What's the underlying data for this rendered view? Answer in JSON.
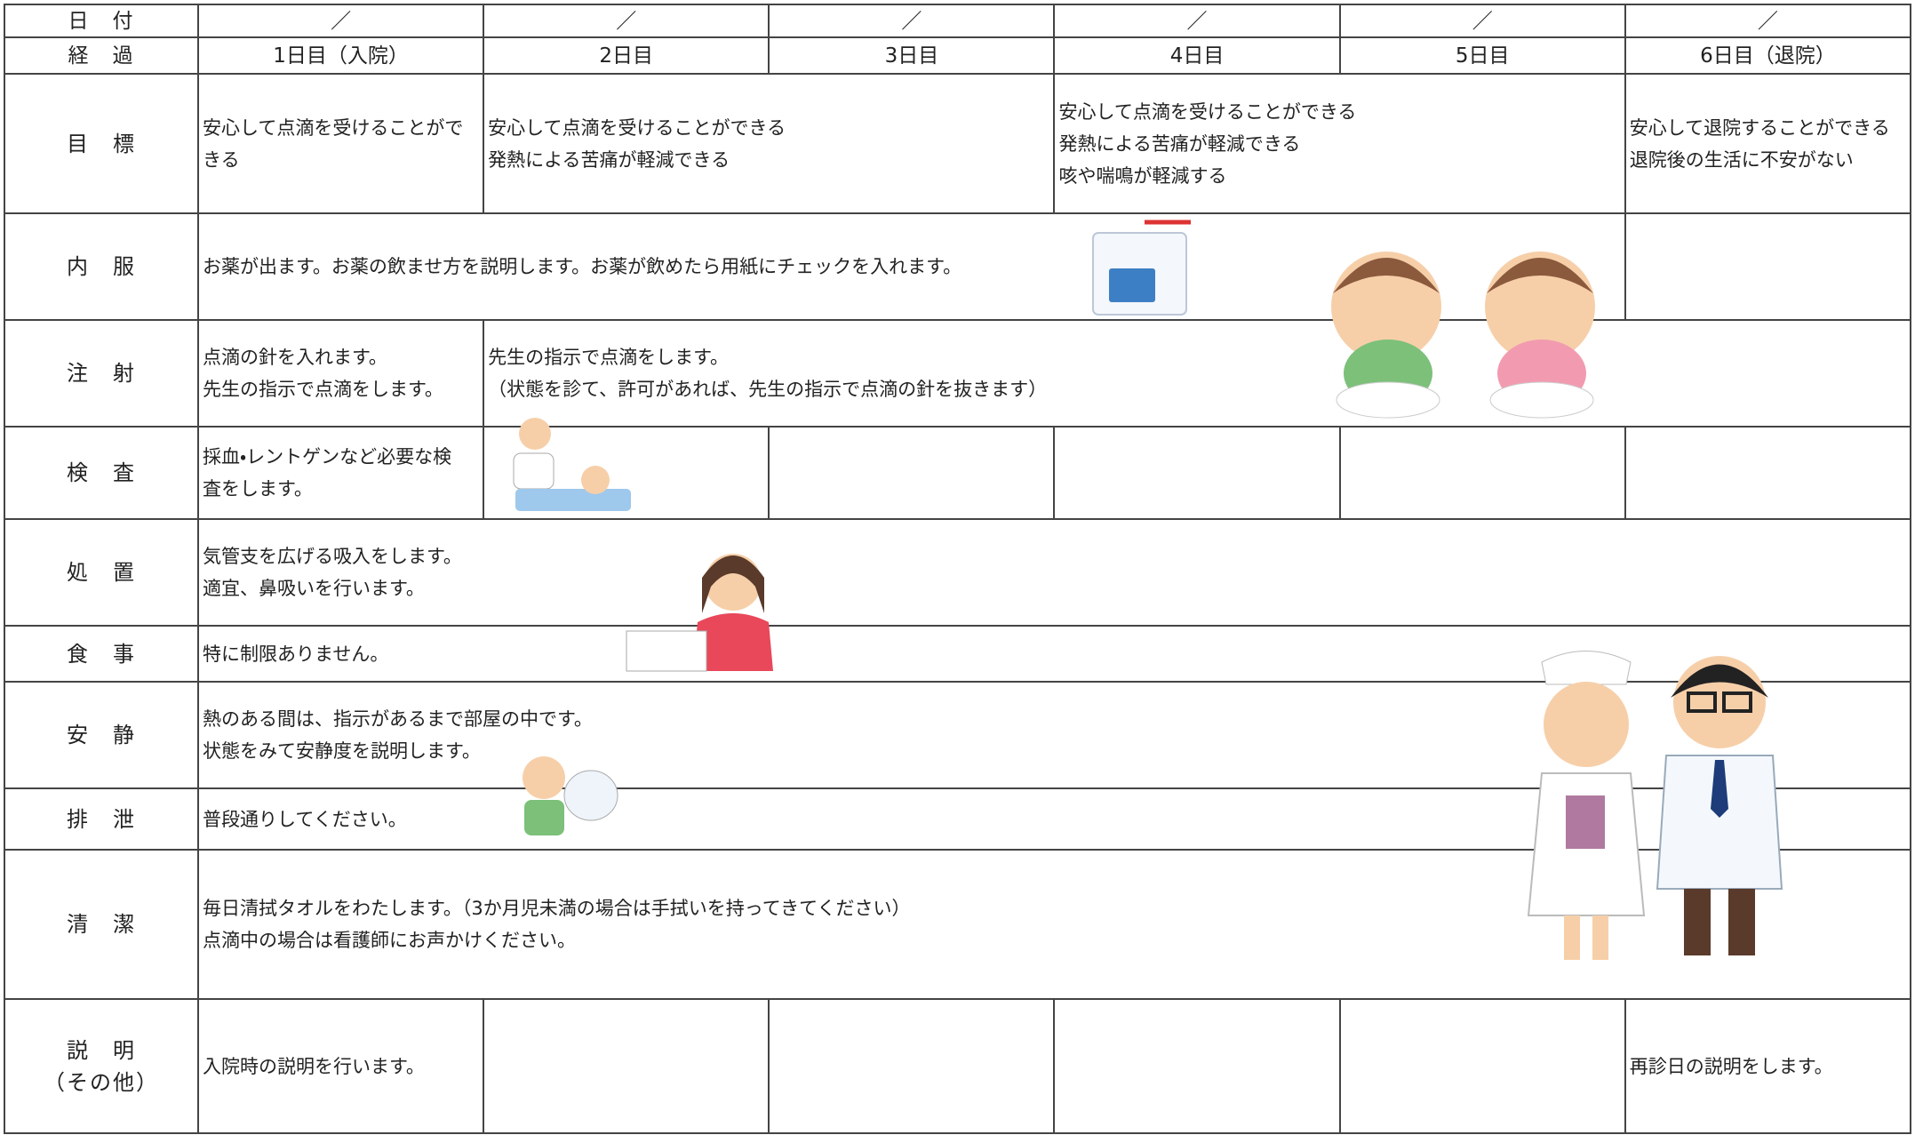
{
  "rows": [
    {
      "label": [
        "日　付"
      ],
      "cells": [
        {
          "span": 1,
          "lines": [
            "／"
          ]
        },
        {
          "span": 1,
          "lines": [
            "／"
          ]
        },
        {
          "span": 1,
          "lines": [
            "／"
          ]
        },
        {
          "span": 1,
          "lines": [
            "／"
          ]
        },
        {
          "span": 1,
          "lines": [
            "／"
          ]
        },
        {
          "span": 1,
          "lines": [
            "／"
          ]
        }
      ]
    },
    {
      "label": [
        "経　過"
      ],
      "cells": [
        {
          "span": 1,
          "lines": [
            "1日目（入院）"
          ]
        },
        {
          "span": 1,
          "lines": [
            "2日目"
          ]
        },
        {
          "span": 1,
          "lines": [
            "3日目"
          ]
        },
        {
          "span": 1,
          "lines": [
            "4日目"
          ]
        },
        {
          "span": 1,
          "lines": [
            "5日目"
          ]
        },
        {
          "span": 1,
          "lines": [
            "6日目（退院）"
          ]
        }
      ]
    },
    {
      "label": [
        "目　標"
      ],
      "cells": [
        {
          "span": 1,
          "lines": [
            "安心して点滴を受けることがで",
            "きる"
          ]
        },
        {
          "span": 2,
          "lines": [
            "安心して点滴を受けることができる",
            "発熱による苦痛が軽減できる"
          ]
        },
        {
          "span": 2,
          "lines": [
            "安心して点滴を受けることができる",
            "発熱による苦痛が軽減できる",
            "咳や喘鳴が軽減する"
          ]
        },
        {
          "span": 1,
          "lines": [
            "安心して退院することができる",
            "退院後の生活に不安がない"
          ]
        }
      ]
    },
    {
      "label": [
        "内　服"
      ],
      "cells": [
        {
          "span": 5,
          "lines": [
            "お薬が出ます。お薬の飲ませ方を説明します。お薬が飲めたら用紙にチェックを入れます。"
          ]
        },
        {
          "span": 1
        }
      ]
    },
    {
      "label": [
        "注　射"
      ],
      "cells": [
        {
          "span": 1,
          "lines": [
            "点滴の針を入れます。",
            "先生の指示で点滴をします。"
          ]
        },
        {
          "span": 5,
          "lines": [
            "先生の指示で点滴をします。",
            "（状態を診て、許可があれば、先生の指示で点滴の針を抜きます）"
          ]
        }
      ]
    },
    {
      "label": [
        "検　査"
      ],
      "cells": [
        {
          "span": 1,
          "lines": [
            "採血・レントゲンなど必要な検",
            "査をします。"
          ]
        },
        {
          "span": 1
        },
        {
          "span": 1
        },
        {
          "span": 1
        },
        {
          "span": 1
        },
        {
          "span": 1
        }
      ]
    },
    {
      "label": [
        "処　置"
      ],
      "cells": [
        {
          "span": 6,
          "lines": [
            "気管支を広げる吸入をします。",
            "適宜、鼻吸いを行います。"
          ]
        }
      ]
    },
    {
      "label": [
        "食　事"
      ],
      "cells": [
        {
          "span": 6,
          "lines": [
            "特に制限ありません。"
          ]
        }
      ]
    },
    {
      "label": [
        "安　静"
      ],
      "cells": [
        {
          "span": 6,
          "lines": [
            "熱のある間は、指示があるまで部屋の中です。",
            "状態をみて安静度を説明します。"
          ]
        }
      ]
    },
    {
      "label": [
        "排　泄"
      ],
      "cells": [
        {
          "span": 6,
          "lines": [
            "普段通りしてください。"
          ]
        }
      ]
    },
    {
      "label": [
        "清　潔"
      ],
      "cells": [
        {
          "span": 6,
          "lines": [
            "毎日清拭タオルをわたします。（3か月児未満の場合は手拭いを持ってきてください）",
            "点滴中の場合は看護師にお声かけください。"
          ]
        }
      ]
    },
    {
      "label": [
        "説　明",
        "（その他）"
      ],
      "cells": [
        {
          "span": 1,
          "lines": [
            "入院時の説明を行います。"
          ]
        },
        {
          "span": 1
        },
        {
          "span": 1
        },
        {
          "span": 1
        },
        {
          "span": 1
        },
        {
          "span": 1,
          "lines": [
            "再診日の説明をします。"
          ]
        }
      ]
    }
  ]
}
